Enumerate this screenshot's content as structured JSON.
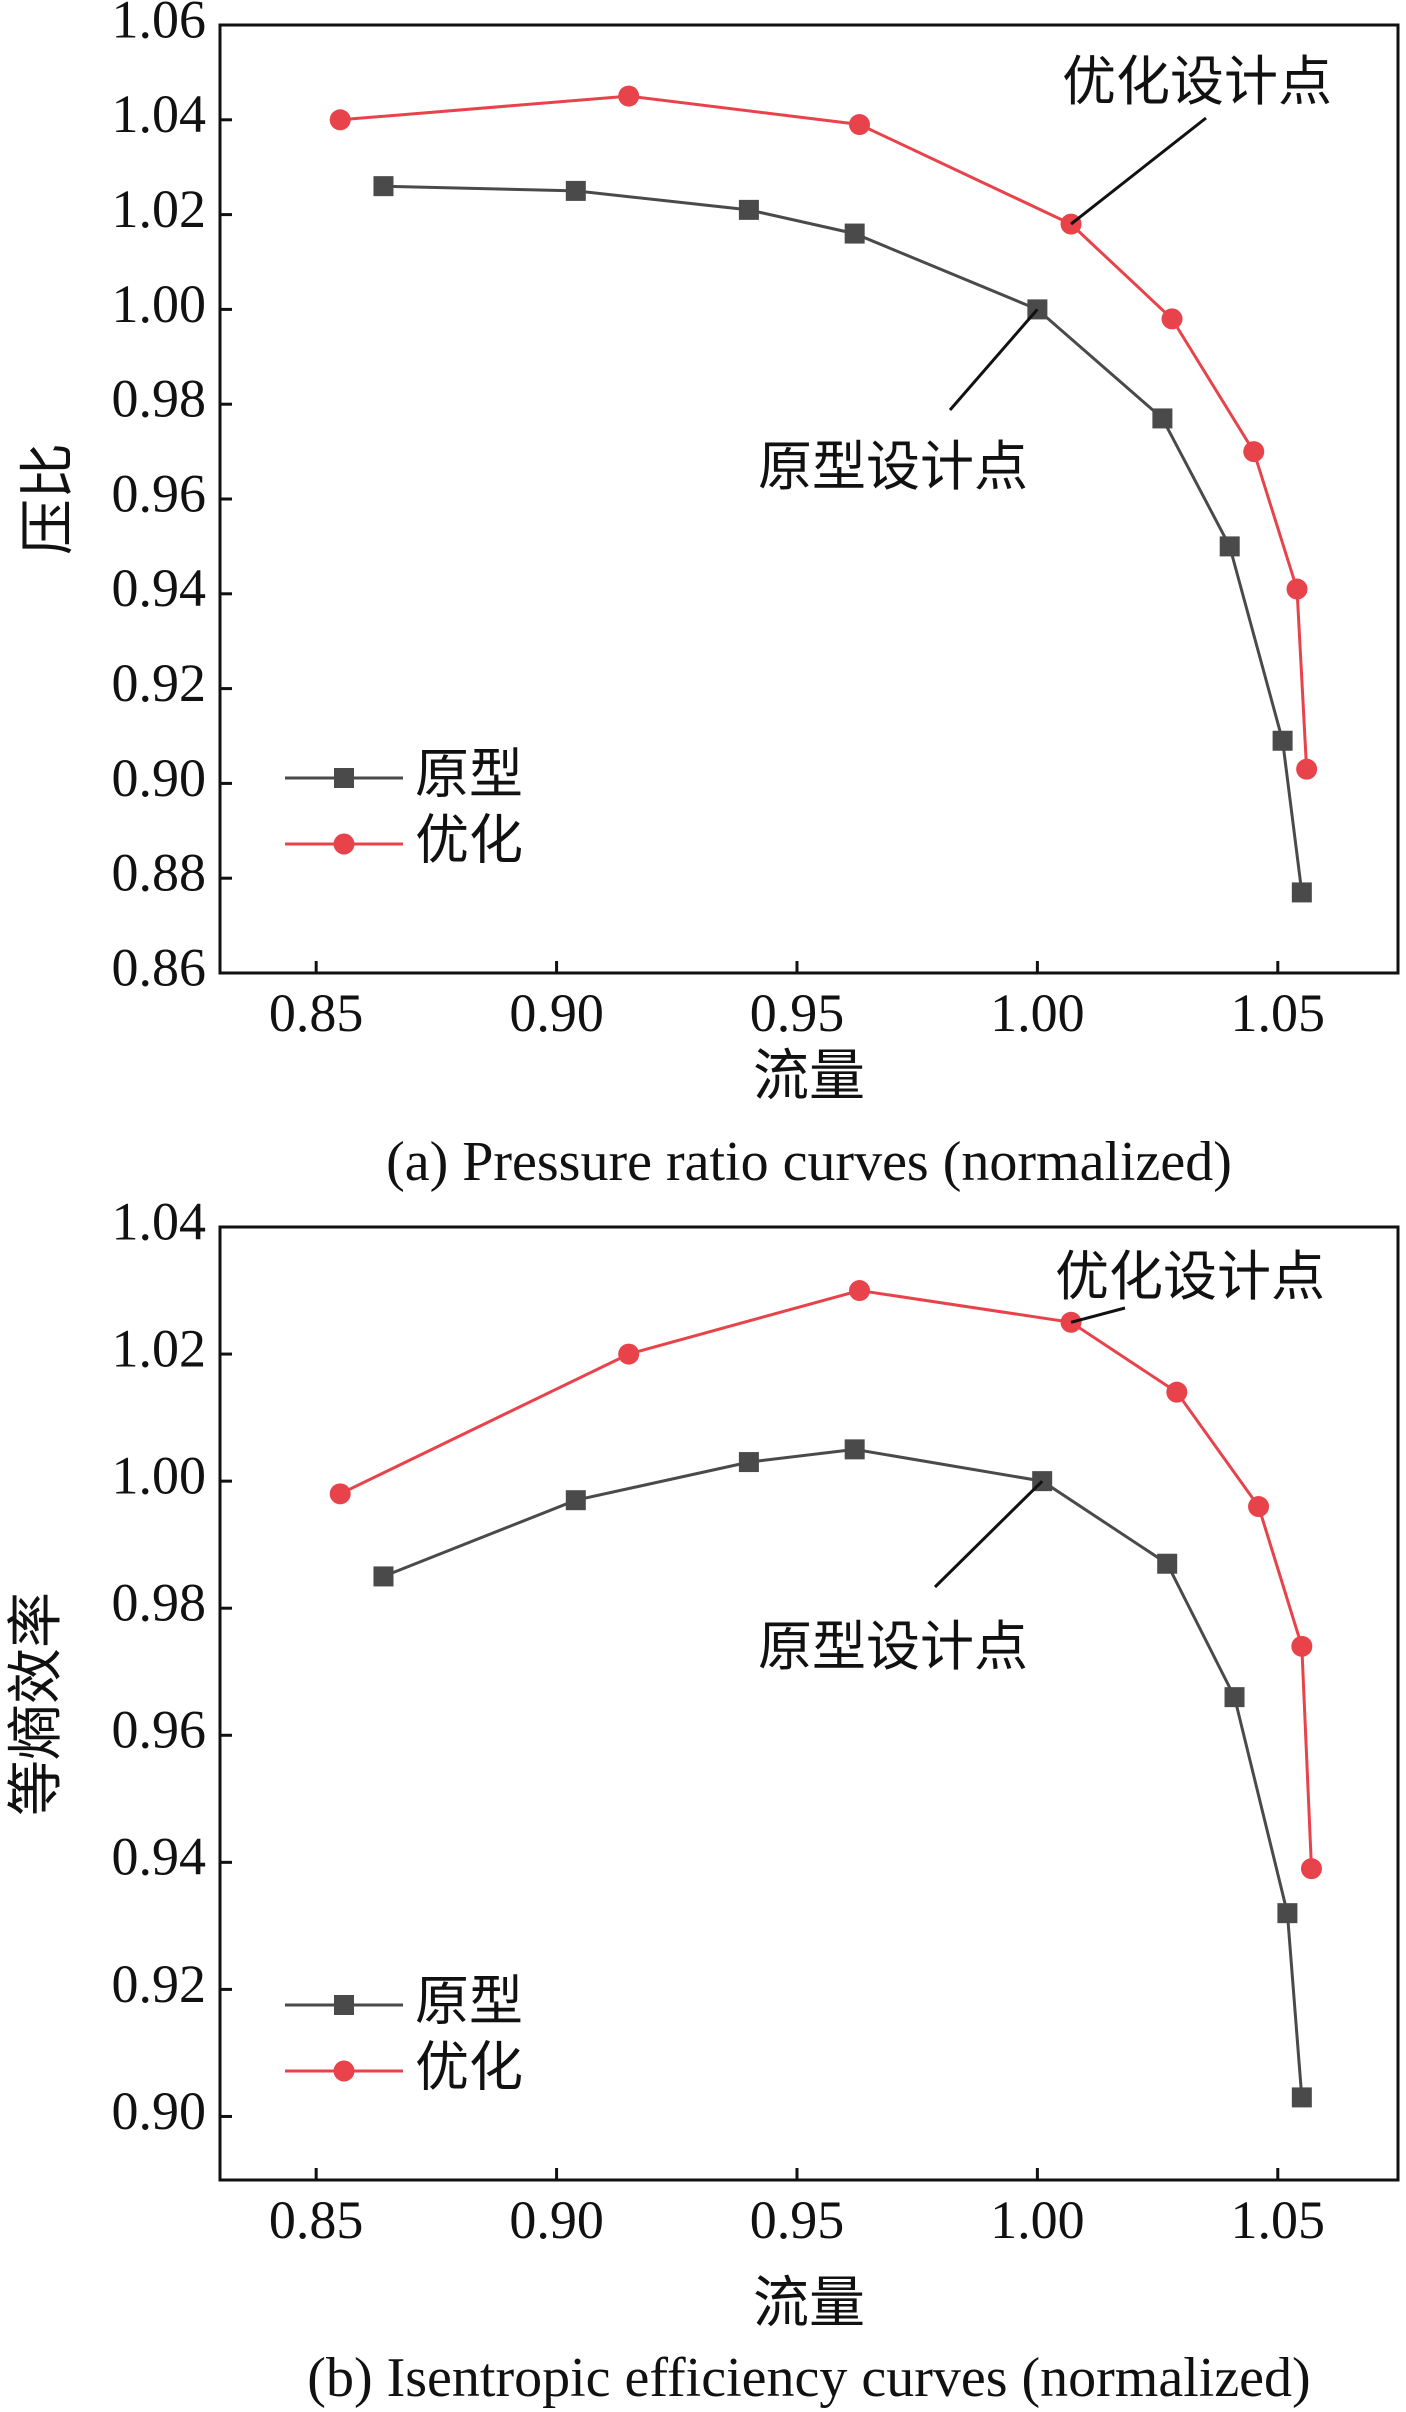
{
  "chart_data": [
    {
      "type": "line",
      "xlabel": "流量",
      "ylabel": "压比",
      "caption": "(a) Pressure ratio curves (normalized)",
      "xlim": [
        0.83,
        1.075
      ],
      "ylim": [
        0.86,
        1.06
      ],
      "xticks": [
        "0.85",
        "0.90",
        "0.95",
        "1.00",
        "1.05"
      ],
      "yticks": [
        "0.86",
        "0.88",
        "0.90",
        "0.92",
        "0.94",
        "0.96",
        "0.98",
        "1.00",
        "1.02",
        "1.04",
        "1.06"
      ],
      "legend_position": "bottom-left",
      "series": [
        {
          "name": "原型",
          "color": "#4a4a4a",
          "marker": "square",
          "x": [
            0.864,
            0.904,
            0.94,
            0.962,
            1.0,
            1.026,
            1.04,
            1.051,
            1.055
          ],
          "y": [
            1.026,
            1.025,
            1.021,
            1.016,
            1.0,
            0.977,
            0.95,
            0.909,
            0.877
          ]
        },
        {
          "name": "优化",
          "color": "#e8434a",
          "marker": "circle",
          "x": [
            0.855,
            0.915,
            0.963,
            1.007,
            1.028,
            1.045,
            1.054,
            1.056
          ],
          "y": [
            1.04,
            1.045,
            1.039,
            1.018,
            0.998,
            0.97,
            0.941,
            0.903
          ]
        }
      ],
      "annotations": [
        {
          "text": "优化设计点",
          "x": 1.007,
          "y": 1.018
        },
        {
          "text": "原型设计点",
          "x": 1.0,
          "y": 1.0
        }
      ]
    },
    {
      "type": "line",
      "xlabel": "流量",
      "ylabel": "等熵效率",
      "caption": "(b) Isentropic efficiency curves (normalized)",
      "xlim": [
        0.83,
        1.075
      ],
      "ylim": [
        0.89,
        1.04
      ],
      "xticks": [
        "0.85",
        "0.90",
        "0.95",
        "1.00",
        "1.05"
      ],
      "yticks": [
        "0.90",
        "0.92",
        "0.94",
        "0.96",
        "0.98",
        "1.00",
        "1.02",
        "1.04"
      ],
      "legend_position": "bottom-left",
      "series": [
        {
          "name": "原型",
          "color": "#4a4a4a",
          "marker": "square",
          "x": [
            0.864,
            0.904,
            0.94,
            0.962,
            1.001,
            1.027,
            1.041,
            1.052,
            1.055
          ],
          "y": [
            0.985,
            0.997,
            1.003,
            1.005,
            1.0,
            0.987,
            0.966,
            0.932,
            0.903
          ]
        },
        {
          "name": "优化",
          "color": "#e8434a",
          "marker": "circle",
          "x": [
            0.855,
            0.915,
            0.963,
            1.007,
            1.029,
            1.046,
            1.055,
            1.057
          ],
          "y": [
            0.998,
            1.02,
            1.03,
            1.025,
            1.014,
            0.996,
            0.974,
            0.939
          ]
        }
      ],
      "annotations": [
        {
          "text": "优化设计点",
          "x": 1.007,
          "y": 1.025
        },
        {
          "text": "原型设计点",
          "x": 1.001,
          "y": 1.0
        }
      ]
    }
  ]
}
